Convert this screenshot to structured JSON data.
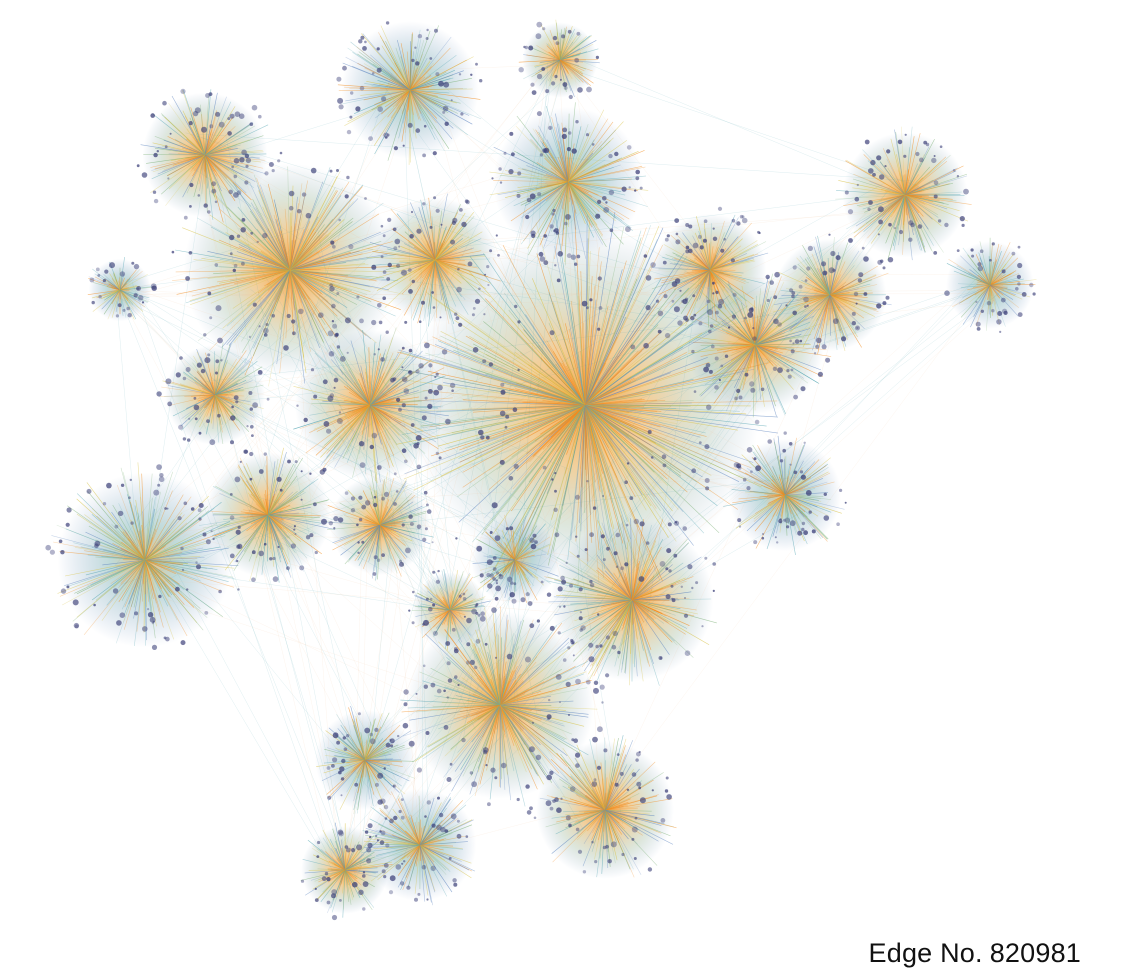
{
  "figure": {
    "edge_count_label": "Edge No.",
    "edge_count_value": "820981"
  },
  "colors": {
    "background": "#ffffff",
    "hub_edge": "#f28c1e",
    "edge_yellow": "#d8c245",
    "edge_teal": "#5aa8b5",
    "edge_green": "#7fb27a",
    "edge_blue": "#5f86c0",
    "node_dark": "#3b3f78",
    "faint_edge": "#f2c8a6"
  },
  "network": {
    "clusters": [
      {
        "name": "central-hub",
        "size": "very-large",
        "dominant_color": "#f28c1e"
      },
      {
        "name": "upper-left-hub",
        "size": "large",
        "dominant_color": "#f28c1e"
      },
      {
        "name": "upper-center-hub",
        "size": "medium",
        "dominant_color": "#f28c1e"
      },
      {
        "name": "upper-right-hub",
        "size": "medium",
        "dominant_color": "#d8c245"
      },
      {
        "name": "right-hub",
        "size": "medium",
        "dominant_color": "#f28c1e"
      },
      {
        "name": "far-right-cluster",
        "size": "small",
        "dominant_color": "#7fb27a"
      },
      {
        "name": "left-center-hub",
        "size": "medium",
        "dominant_color": "#f28c1e"
      },
      {
        "name": "left-hub",
        "size": "medium",
        "dominant_color": "#f28c1e"
      },
      {
        "name": "far-left-cluster",
        "size": "medium",
        "dominant_color": "#f28c1e"
      },
      {
        "name": "lower-center-hub",
        "size": "large",
        "dominant_color": "#f28c1e"
      },
      {
        "name": "lower-right-hub",
        "size": "medium",
        "dominant_color": "#f28c1e"
      },
      {
        "name": "bottom-left-cluster",
        "size": "small",
        "dominant_color": "#5aa8b5"
      },
      {
        "name": "bottom-cluster",
        "size": "medium",
        "dominant_color": "#f28c1e"
      }
    ]
  }
}
